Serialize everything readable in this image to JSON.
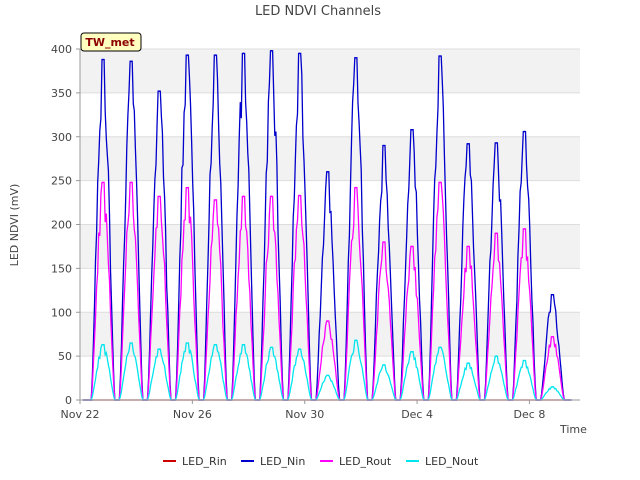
{
  "chart_data": {
    "type": "line",
    "title": "LED NDVI Channels",
    "xlabel": "Time",
    "ylabel": "LED NDVI (mV)",
    "ylim": [
      0,
      400
    ],
    "yticks": [
      0,
      50,
      100,
      150,
      200,
      250,
      300,
      350,
      400
    ],
    "xlim": [
      0,
      17.8
    ],
    "xtick_labels": [
      {
        "label": "Nov 22",
        "day": 0
      },
      {
        "label": "Nov 26",
        "day": 4
      },
      {
        "label": "Nov 30",
        "day": 8
      },
      {
        "label": "Dec 4",
        "day": 12
      },
      {
        "label": "Dec 8",
        "day": 16
      }
    ],
    "station_label": "TW_met",
    "grid": true,
    "legend_position": "bottom",
    "days": [
      {
        "nin": 388,
        "rout": 248,
        "nout": 63
      },
      {
        "nin": 386,
        "rout": 248,
        "nout": 65
      },
      {
        "nin": 352,
        "rout": 232,
        "nout": 58
      },
      {
        "nin": 393,
        "rout": 242,
        "nout": 65
      },
      {
        "nin": 393,
        "rout": 228,
        "nout": 63
      },
      {
        "nin": 395,
        "rout": 232,
        "nout": 63
      },
      {
        "nin": 398,
        "rout": 232,
        "nout": 60
      },
      {
        "nin": 395,
        "rout": 233,
        "nout": 58
      },
      {
        "nin": 260,
        "rout": 90,
        "nout": 28
      },
      {
        "nin": 390,
        "rout": 242,
        "nout": 68
      },
      {
        "nin": 290,
        "rout": 180,
        "nout": 40
      },
      {
        "nin": 308,
        "rout": 175,
        "nout": 55
      },
      {
        "nin": 392,
        "rout": 248,
        "nout": 60
      },
      {
        "nin": 292,
        "rout": 175,
        "nout": 42
      },
      {
        "nin": 293,
        "rout": 190,
        "nout": 50
      },
      {
        "nin": 306,
        "rout": 195,
        "nout": 45
      },
      {
        "nin": 120,
        "rout": 72,
        "nout": 15
      }
    ],
    "series": [
      {
        "name": "LED_Rin",
        "color": "#cc0000"
      },
      {
        "name": "LED_Nin",
        "color": "#0000cc"
      },
      {
        "name": "LED_Rout",
        "color": "#ff00ff"
      },
      {
        "name": "LED_Nout",
        "color": "#00e5ee"
      }
    ]
  }
}
